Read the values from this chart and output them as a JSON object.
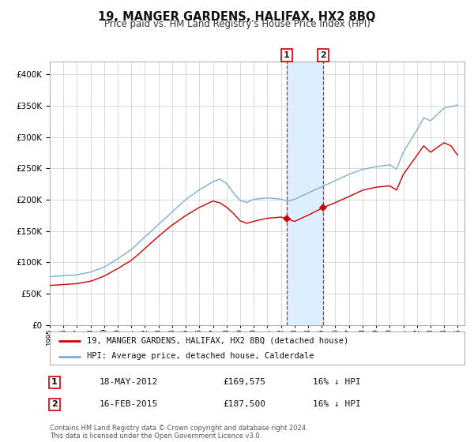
{
  "title": "19, MANGER GARDENS, HALIFAX, HX2 8BQ",
  "subtitle": "Price paid vs. HM Land Registry's House Price Index (HPI)",
  "legend_entry1": "19, MANGER GARDENS, HALIFAX, HX2 8BQ (detached house)",
  "legend_entry2": "HPI: Average price, detached house, Calderdale",
  "event1_date": 2012.38,
  "event1_label": "18-MAY-2012",
  "event1_price": "£169,575",
  "event1_hpi": "16% ↓ HPI",
  "event2_date": 2015.12,
  "event2_label": "16-FEB-2015",
  "event2_price": "£187,500",
  "event2_hpi": "16% ↓ HPI",
  "red_color": "#cc0000",
  "blue_color": "#7bafd4",
  "shade_color": "#ddeeff",
  "background_color": "#ffffff",
  "grid_color": "#cccccc",
  "footer": "Contains HM Land Registry data © Crown copyright and database right 2024.\nThis data is licensed under the Open Government Licence v3.0.",
  "ylim": [
    0,
    420000
  ],
  "xlim": [
    1995,
    2025.5
  ]
}
